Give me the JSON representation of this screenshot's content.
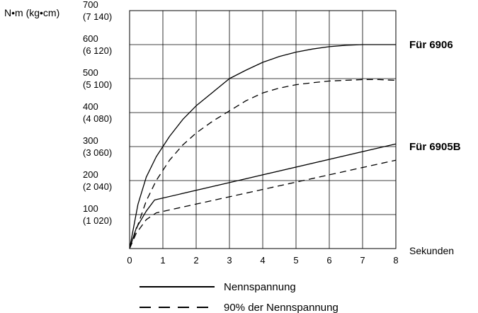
{
  "chart_data": {
    "type": "line",
    "title": "",
    "ylabel": "N•m (kg•cm)",
    "xlabel": "Sekunden",
    "xlim": [
      0,
      8
    ],
    "ylim": [
      0,
      700
    ],
    "grid": true,
    "x_ticks": [
      "0",
      "1",
      "2",
      "3",
      "4",
      "5",
      "6",
      "7",
      "8"
    ],
    "y_ticks": [
      {
        "value": 100,
        "line1": "100",
        "line2": "(1 020)"
      },
      {
        "value": 200,
        "line1": "200",
        "line2": "(2 040)"
      },
      {
        "value": 300,
        "line1": "300",
        "line2": "(3 060)"
      },
      {
        "value": 400,
        "line1": "400",
        "line2": "(4 080)"
      },
      {
        "value": 500,
        "line1": "500",
        "line2": "(5 100)"
      },
      {
        "value": 600,
        "line1": "600",
        "line2": "(6 120)"
      },
      {
        "value": 700,
        "line1": "700",
        "line2": "(7 140)"
      }
    ],
    "groups": [
      {
        "label": "Für 6906",
        "label_at": 600
      },
      {
        "label": "Für 6905B",
        "label_at": 300
      }
    ],
    "series": [
      {
        "group": 0,
        "style": "solid",
        "points": [
          [
            0,
            0
          ],
          [
            0.25,
            130
          ],
          [
            0.5,
            210
          ],
          [
            0.8,
            270
          ],
          [
            1.2,
            330
          ],
          [
            1.6,
            380
          ],
          [
            2,
            420
          ],
          [
            2.5,
            460
          ],
          [
            3,
            500
          ],
          [
            3.5,
            525
          ],
          [
            4,
            548
          ],
          [
            4.5,
            565
          ],
          [
            5,
            578
          ],
          [
            5.5,
            587
          ],
          [
            6,
            594
          ],
          [
            6.5,
            598
          ],
          [
            7,
            600
          ],
          [
            7.5,
            600
          ],
          [
            8,
            600
          ]
        ]
      },
      {
        "group": 0,
        "style": "dashed",
        "points": [
          [
            0,
            0
          ],
          [
            0.25,
            70
          ],
          [
            0.5,
            140
          ],
          [
            0.8,
            200
          ],
          [
            1.2,
            260
          ],
          [
            1.6,
            305
          ],
          [
            2,
            340
          ],
          [
            2.5,
            375
          ],
          [
            3,
            405
          ],
          [
            3.5,
            435
          ],
          [
            4,
            458
          ],
          [
            4.5,
            472
          ],
          [
            5,
            482
          ],
          [
            5.5,
            488
          ],
          [
            6,
            493
          ],
          [
            6.5,
            495
          ],
          [
            7,
            497
          ],
          [
            7.5,
            497
          ],
          [
            8,
            495
          ]
        ]
      },
      {
        "group": 1,
        "style": "solid",
        "points": [
          [
            0,
            0
          ],
          [
            0.2,
            60
          ],
          [
            0.5,
            110
          ],
          [
            0.75,
            143
          ],
          [
            8,
            308
          ]
        ]
      },
      {
        "group": 1,
        "style": "dashed",
        "points": [
          [
            0,
            0
          ],
          [
            0.2,
            45
          ],
          [
            0.5,
            85
          ],
          [
            0.8,
            105
          ],
          [
            8,
            260
          ]
        ]
      }
    ]
  },
  "legend": {
    "solid_label": "Nennspannung",
    "dashed_label": "90% der Nennspannung"
  }
}
